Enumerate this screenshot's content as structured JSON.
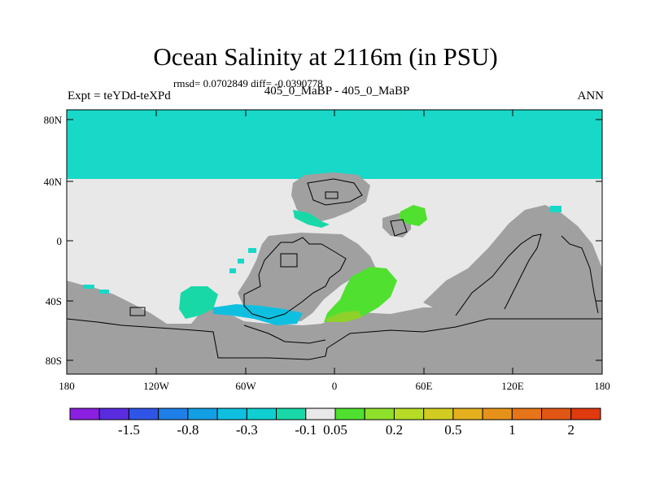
{
  "title": "Ocean Salinity at 2116m (in PSU)",
  "stats": "rmsd= 0.0702849 diff= -0.0390778",
  "left_label": "Expt = teYDd-teXPd",
  "center_label": "405_0_MaBP - 405_0_MaBP",
  "right_label": "ANN",
  "y_ticks": [
    "80N",
    "40N",
    "0",
    "40S",
    "80S"
  ],
  "x_ticks": [
    "180",
    "120W",
    "60W",
    "0",
    "60E",
    "120E",
    "180"
  ],
  "colorbar": {
    "colors": [
      "#8a1fe0",
      "#5a2ce0",
      "#2f55e6",
      "#1f7fe8",
      "#139fe4",
      "#0fbfe0",
      "#10cfd0",
      "#18d8a8",
      "#e8e8e8",
      "#50e030",
      "#8fe02a",
      "#b6dc26",
      "#d2cc22",
      "#e4b01e",
      "#e6921a",
      "#e67418",
      "#e25614",
      "#e03a10"
    ],
    "labels": [
      "-1.5",
      "-0.8",
      "-0.3",
      "-0.1",
      "0.05",
      "0.2",
      "0.5",
      "1",
      "2"
    ],
    "label_boundaries": [
      2,
      4,
      6,
      8,
      9,
      11,
      13,
      15,
      17
    ]
  },
  "map_colors": {
    "land": "#a0a0a0",
    "near_zero": "#e8e8e8",
    "north_ocean": "#18d8c8",
    "small_positive": "#50e030",
    "small_negative_light": "#10cfd0",
    "small_negative": "#0fbfe0",
    "yellowgreen": "#8fd02a",
    "seafoam": "#18d8a8"
  }
}
